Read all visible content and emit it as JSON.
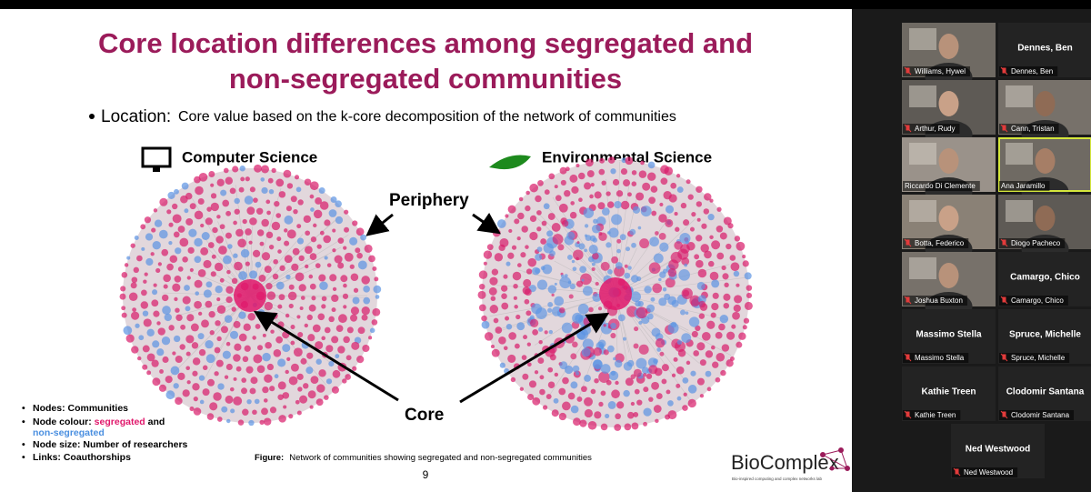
{
  "slide": {
    "title_lines": [
      "Core location differences among segregated and",
      "non-segregated communities"
    ],
    "bullet": {
      "label": "Location:",
      "text": "Core value based on the k-core decomposition of the network of communities"
    },
    "panels": [
      "Computer Science",
      "Environmental Science"
    ],
    "annotations": {
      "periphery": "Periphery",
      "core": "Core"
    },
    "legend": {
      "nodes": "Nodes: Communities",
      "colour_label": "Node colour:",
      "segregated": "segregated",
      "and": "and",
      "non_segregated": "non-segregated",
      "size": "Node size: Number of researchers",
      "links": "Links: Coauthorships"
    },
    "caption": {
      "label": "Figure:",
      "text": "Network of communities showing segregated and non-segregated communities"
    },
    "page_number": "9",
    "logo": {
      "name": "BioComplex",
      "subtitle": "Bio-inspired computing and complex networks lab"
    }
  },
  "participants": [
    {
      "name": "Williams, Hywel",
      "video": true,
      "muted": true
    },
    {
      "name": "Dennes, Ben",
      "video": false,
      "muted": true
    },
    {
      "name": "Arthur, Rudy",
      "video": true,
      "muted": true
    },
    {
      "name": "Cann, Tristan",
      "video": true,
      "muted": true
    },
    {
      "name": "Riccardo Di Clemente",
      "video": true,
      "muted": false
    },
    {
      "name": "Ana Jaramillo",
      "video": true,
      "muted": false,
      "active_speaker": true
    },
    {
      "name": "Botta, Federico",
      "video": true,
      "muted": true
    },
    {
      "name": "Diogo Pacheco",
      "video": true,
      "muted": true
    },
    {
      "name": "Joshua Buxton",
      "video": true,
      "muted": true
    },
    {
      "name": "Camargo, Chico",
      "video": false,
      "muted": true
    },
    {
      "name": "Massimo Stella",
      "video": false,
      "muted": true
    },
    {
      "name": "Spruce, Michelle",
      "video": false,
      "muted": true
    },
    {
      "name": "Kathie Treen",
      "video": false,
      "muted": true
    },
    {
      "name": "Clodomir Santana",
      "video": false,
      "muted": true
    },
    {
      "name": "Ned Westwood",
      "video": false,
      "muted": true
    }
  ]
}
